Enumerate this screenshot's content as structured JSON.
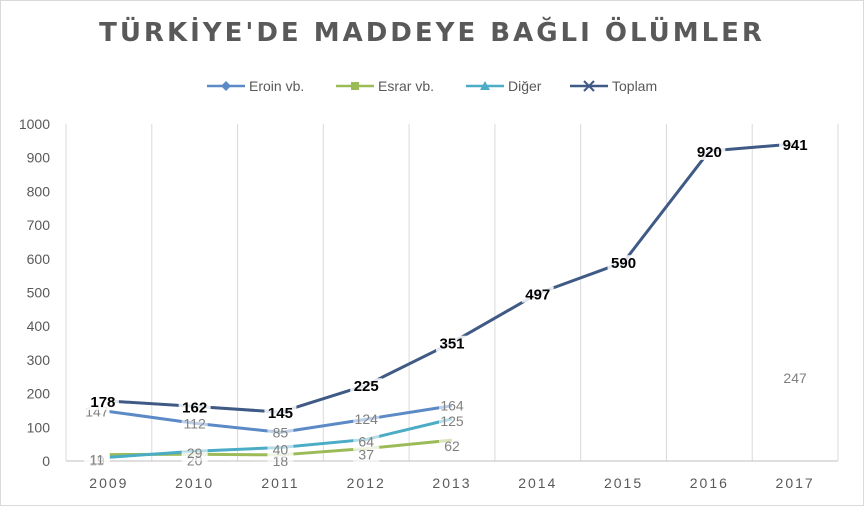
{
  "chart_data": {
    "type": "line",
    "title": "TÜRKİYE'DE MADDEYE BAĞLI ÖLÜMLER",
    "categories": [
      "2009",
      "2010",
      "2011",
      "2012",
      "2013",
      "2014",
      "2015",
      "2016",
      "2017"
    ],
    "ylim": [
      0,
      1000
    ],
    "yticks": [
      "0",
      "100",
      "200",
      "300",
      "400",
      "500",
      "600",
      "700",
      "800",
      "900",
      "1000"
    ],
    "grid": "vertical",
    "legend_position": "top",
    "series": [
      {
        "name": "Eroin vb.",
        "color": "#5b8ac6",
        "marker": "diamond",
        "values": [
          147,
          112,
          85,
          124,
          164,
          null,
          null,
          null,
          null
        ]
      },
      {
        "name": "Esrar vb.",
        "color": "#9bbb59",
        "marker": "square",
        "values": [
          19,
          20,
          18,
          37,
          62,
          null,
          null,
          null,
          null
        ]
      },
      {
        "name": "Diğer",
        "color": "#4bacc6",
        "marker": "triangle",
        "values": [
          11,
          29,
          40,
          64,
          125,
          null,
          null,
          null,
          null
        ]
      },
      {
        "name": "Toplam",
        "color": "#3f5a85",
        "marker": "x",
        "values": [
          178,
          162,
          145,
          225,
          351,
          497,
          590,
          920,
          941
        ]
      }
    ],
    "annotations": [
      {
        "text": "247",
        "x": "2017",
        "y": 247
      }
    ]
  }
}
